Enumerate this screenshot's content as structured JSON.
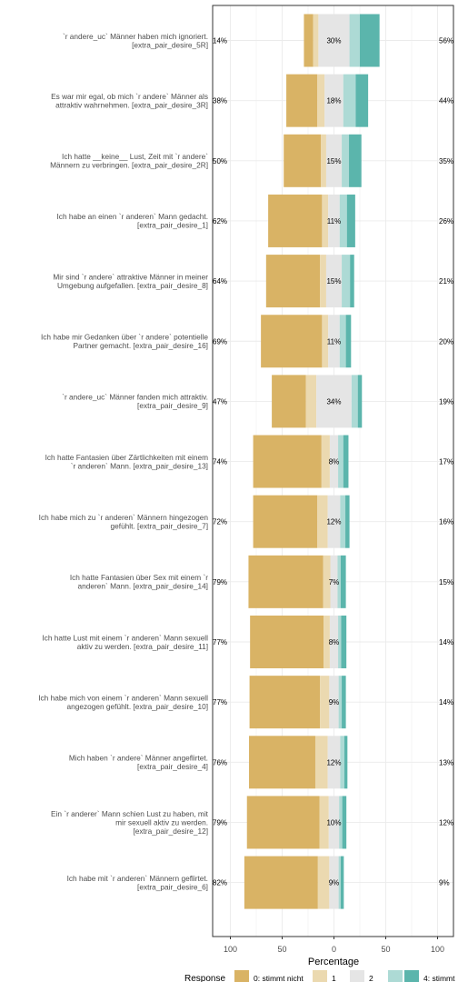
{
  "chart_data": {
    "type": "bar",
    "orientation": "horizontal-diverging-stacked",
    "xlabel": "Percentage",
    "x_ticks": [
      "100",
      "50",
      "0",
      "50",
      "100"
    ],
    "xlim": [
      -100,
      100
    ],
    "grid": true,
    "legend": {
      "title": "Response",
      "position": "bottom",
      "entries": [
        "0: stimmt nicht",
        "1",
        "2",
        "3",
        "4: stimmt"
      ]
    },
    "colors": [
      "#D9B365",
      "#EBD9B0",
      "#E5E5E5",
      "#ADDAD5",
      "#5BB5AC"
    ],
    "rows": [
      {
        "label": [
          "`r andere_uc` Männer haben mich ignoriert.",
          "[extra_pair_desire_5R]"
        ],
        "left_pct": "14%",
        "center_pct": "30%",
        "right_pct": "56%",
        "values": [
          9,
          5,
          30,
          10,
          19
        ]
      },
      {
        "label": [
          "Es war mir egal, ob mich `r andere` Männer als",
          "attraktiv wahrnehmen. [extra_pair_desire_3R]"
        ],
        "left_pct": "38%",
        "center_pct": "18%",
        "right_pct": "44%",
        "values": [
          30,
          7,
          18,
          12,
          12
        ]
      },
      {
        "label": [
          "Ich hatte __keine__ Lust, Zeit mit `r andere`",
          "Männern zu verbringen. [extra_pair_desire_2R]"
        ],
        "left_pct": "50%",
        "center_pct": "15%",
        "right_pct": "35%",
        "values": [
          36,
          5,
          15,
          7,
          12
        ]
      },
      {
        "label": [
          "Ich habe an einen `r anderen` Mann gedacht.",
          "[extra_pair_desire_1]"
        ],
        "left_pct": "62%",
        "center_pct": "11%",
        "right_pct": "26%",
        "values": [
          52,
          6,
          11,
          7,
          8
        ]
      },
      {
        "label": [
          "Mir sind `r andere` attraktive Männer in meiner",
          "Umgebung aufgefallen. [extra_pair_desire_8]"
        ],
        "left_pct": "64%",
        "center_pct": "15%",
        "right_pct": "21%",
        "values": [
          52,
          6,
          15,
          8,
          4
        ]
      },
      {
        "label": [
          "Ich habe mir Gedanken über `r andere` potentielle",
          "Partner gemacht. [extra_pair_desire_16]"
        ],
        "left_pct": "69%",
        "center_pct": "11%",
        "right_pct": "20%",
        "values": [
          59,
          6,
          11,
          6,
          5
        ]
      },
      {
        "label": [
          "`r andere_uc` Männer fanden mich attraktiv.",
          "[extra_pair_desire_9]"
        ],
        "left_pct": "47%",
        "center_pct": "34%",
        "right_pct": "19%",
        "values": [
          33,
          10,
          34,
          6,
          4
        ]
      },
      {
        "label": [
          "Ich hatte Fantasien über Zärtlichkeiten mit einem",
          "`r anderen` Mann. [extra_pair_desire_13]"
        ],
        "left_pct": "74%",
        "center_pct": "8%",
        "right_pct": "17%",
        "values": [
          66,
          8,
          8,
          5,
          5
        ]
      },
      {
        "label": [
          "Ich habe mich zu `r anderen` Männern hingezogen",
          "gefühlt. [extra_pair_desire_7]"
        ],
        "left_pct": "72%",
        "center_pct": "12%",
        "right_pct": "16%",
        "values": [
          62,
          10,
          12,
          5,
          4
        ]
      },
      {
        "label": [
          "Ich hatte Fantasien über Sex mit einem `r",
          "anderen` Mann. [extra_pair_desire_14]"
        ],
        "left_pct": "79%",
        "center_pct": "7%",
        "right_pct": "15%",
        "values": [
          72,
          7,
          7,
          3,
          5
        ]
      },
      {
        "label": [
          "Ich hatte Lust mit einem `r anderen` Mann sexuell",
          "aktiv zu werden. [extra_pair_desire_11]"
        ],
        "left_pct": "77%",
        "center_pct": "8%",
        "right_pct": "14%",
        "values": [
          71,
          6,
          8,
          3,
          5
        ]
      },
      {
        "label": [
          "Ich habe mich von einem `r anderen` Mann sexuell",
          "angezogen gefühlt. [extra_pair_desire_10]"
        ],
        "left_pct": "77%",
        "center_pct": "9%",
        "right_pct": "14%",
        "values": [
          68,
          9,
          9,
          3,
          4
        ]
      },
      {
        "label": [
          "Mich haben `r andere` Männer angeflirtet.",
          "[extra_pair_desire_4]"
        ],
        "left_pct": "76%",
        "center_pct": "12%",
        "right_pct": "13%",
        "values": [
          64,
          12,
          12,
          4,
          3
        ]
      },
      {
        "label": [
          "Ein `r anderer` Mann schien Lust zu haben, mit",
          "mir sexuell aktiv zu werden.",
          "[extra_pair_desire_12]"
        ],
        "left_pct": "79%",
        "center_pct": "10%",
        "right_pct": "12%",
        "values": [
          70,
          9,
          10,
          3,
          4
        ]
      },
      {
        "label": [
          "Ich habe mit `r anderen` Männern geflirtet.",
          "[extra_pair_desire_6]"
        ],
        "left_pct": "82%",
        "center_pct": "9%",
        "right_pct": "9%",
        "values": [
          71,
          11,
          9,
          2,
          3
        ]
      }
    ]
  }
}
